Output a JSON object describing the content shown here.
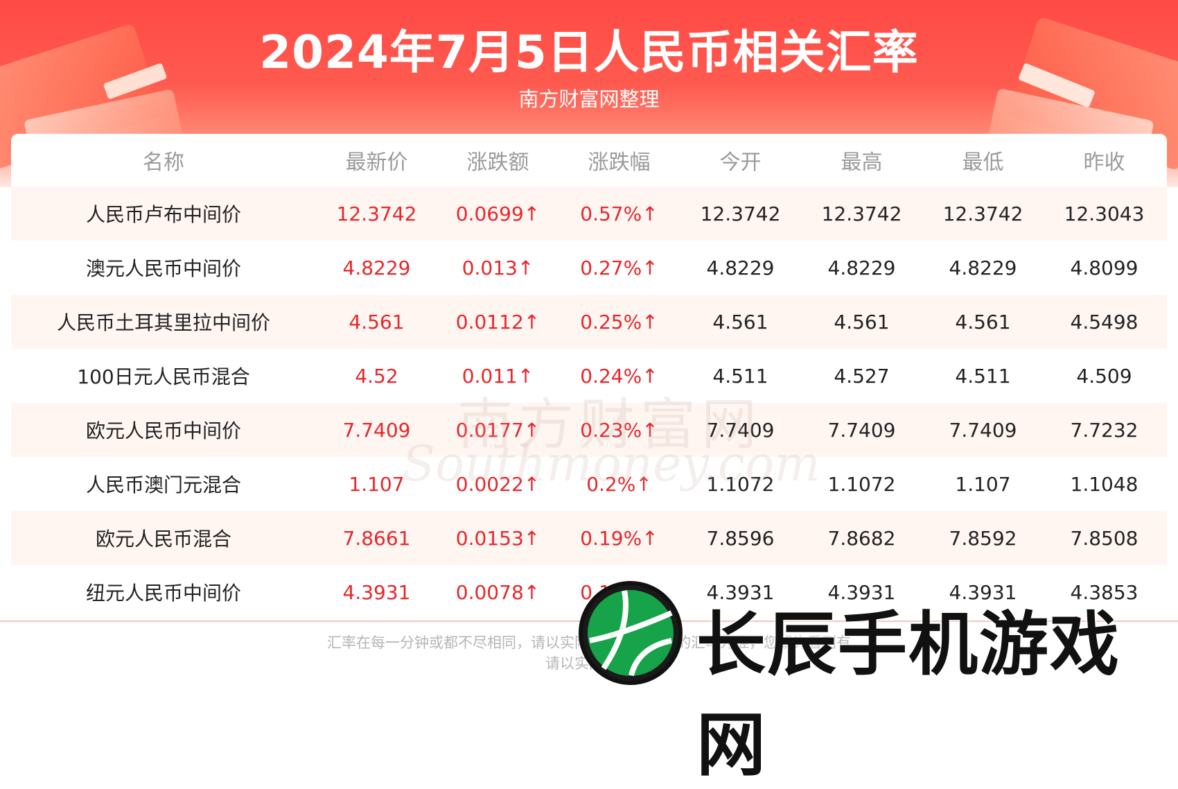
{
  "title": "2024年7月5日人民币相关汇率",
  "subtitle": "南方财富网整理",
  "table": {
    "headers": [
      "名称",
      "最新价",
      "涨跌额",
      "涨跌幅",
      "今开",
      "最高",
      "最低",
      "昨收"
    ],
    "rows": [
      [
        "人民币卢布中间价",
        "12.3742",
        "0.0699↑",
        "0.57%↑",
        "12.3742",
        "12.3742",
        "12.3742",
        "12.3043"
      ],
      [
        "澳元人民币中间价",
        "4.8229",
        "0.013↑",
        "0.27%↑",
        "4.8229",
        "4.8229",
        "4.8229",
        "4.8099"
      ],
      [
        "人民币土耳其里拉中间价",
        "4.561",
        "0.0112↑",
        "0.25%↑",
        "4.561",
        "4.561",
        "4.561",
        "4.5498"
      ],
      [
        "100日元人民币混合",
        "4.52",
        "0.011↑",
        "0.24%↑",
        "4.511",
        "4.527",
        "4.511",
        "4.509"
      ],
      [
        "欧元人民币中间价",
        "7.7409",
        "0.0177↑",
        "0.23%↑",
        "7.7409",
        "7.7409",
        "7.7409",
        "7.7232"
      ],
      [
        "人民币澳门元混合",
        "1.107",
        "0.0022↑",
        "0.2%↑",
        "1.1072",
        "1.1072",
        "1.107",
        "1.1048"
      ],
      [
        "欧元人民币混合",
        "7.8661",
        "0.0153↑",
        "0.19%↑",
        "7.8596",
        "7.8682",
        "7.8592",
        "7.8508"
      ],
      [
        "纽元人民币中间价",
        "4.3931",
        "0.0078↑",
        "0.18%↑",
        "4.3931",
        "4.3931",
        "4.3931",
        "4.3853"
      ]
    ]
  },
  "watermark": {
    "cn": "南方财富网",
    "en": "Southmoney.com"
  },
  "footer": {
    "line1": "汇率在每一分钟或都不尽相同，请以实际兑换或交易时的汇率为准，您或许看到有",
    "line2": "请以实际为准"
  },
  "brand": {
    "name": "长辰手机游戏网"
  },
  "colors": {
    "header_red": "#ff4a45",
    "price_red": "#e8262a",
    "header_text": "#9a9a9a",
    "row_shade": "#fff6f2"
  }
}
